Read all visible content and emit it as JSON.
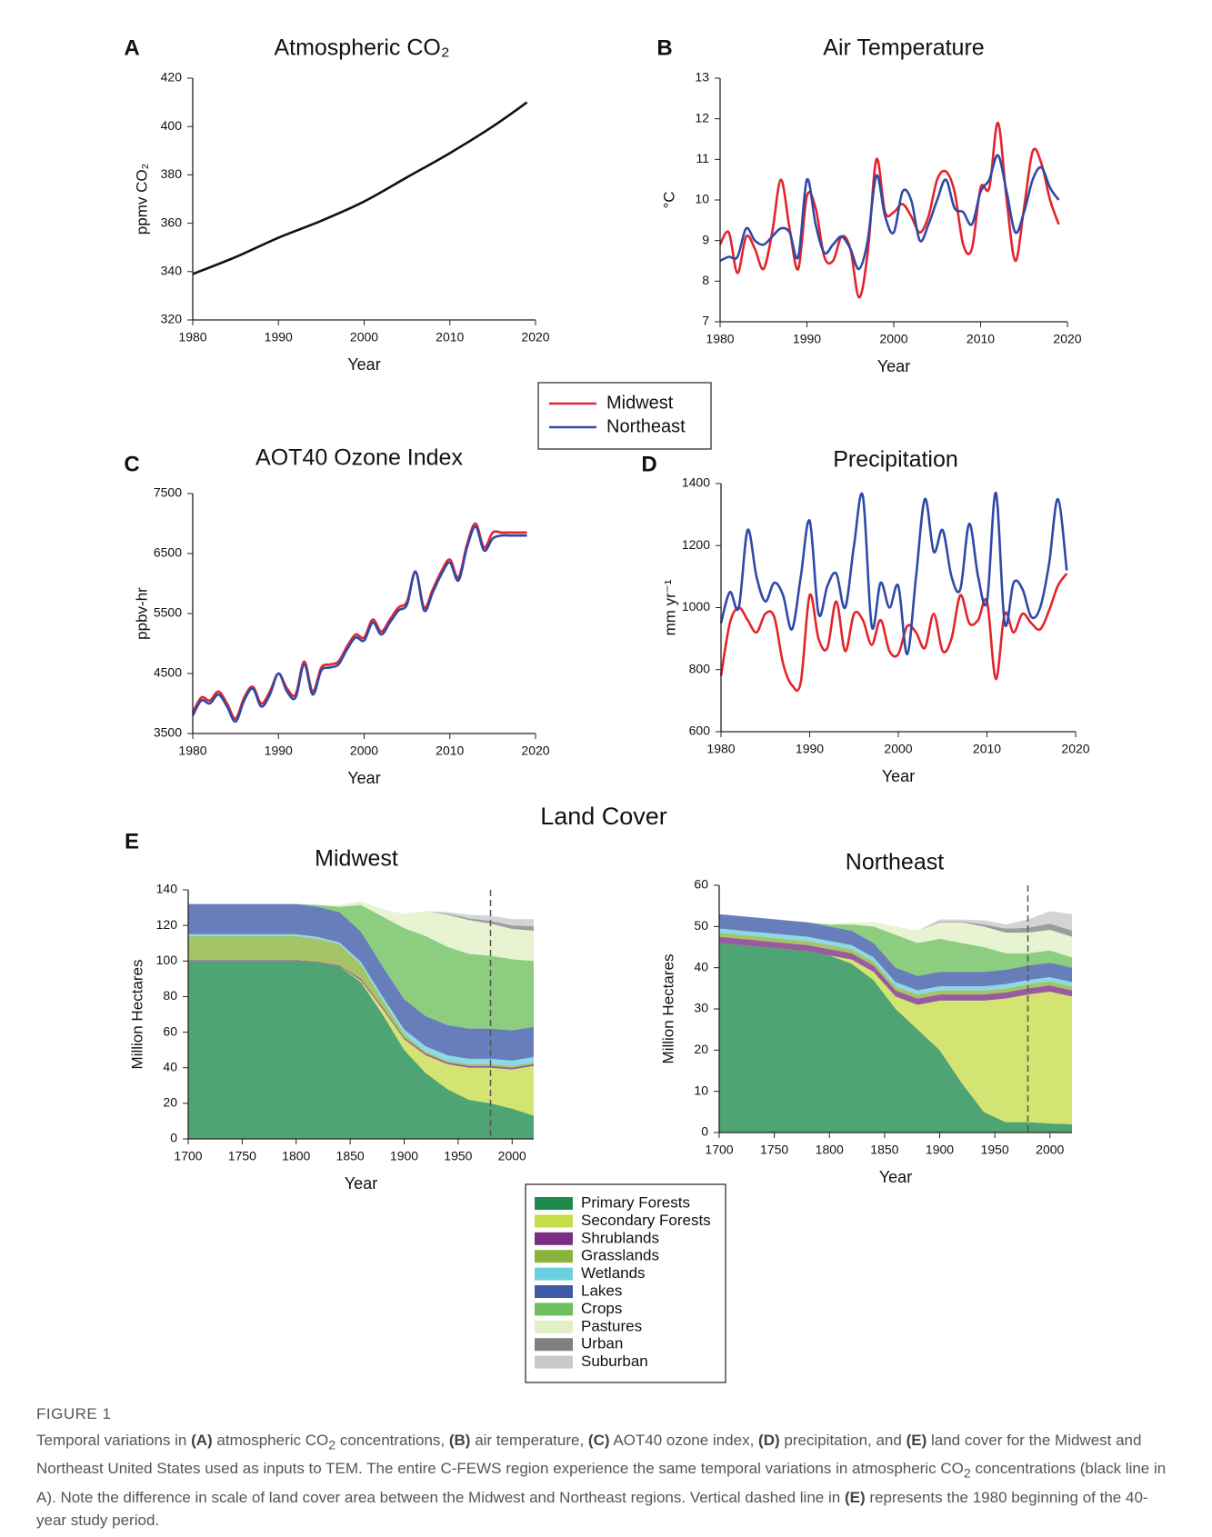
{
  "chart_data": [
    {
      "type": "line",
      "panel": "A",
      "title": "Atmospheric CO₂",
      "xlabel": "Year",
      "ylabel": "ppmv CO₂",
      "x": [
        1980,
        1985,
        1990,
        1995,
        2000,
        2005,
        2010,
        2015,
        2019
      ],
      "series": [
        {
          "color": "#111111",
          "values": [
            339,
            346,
            354,
            361,
            369,
            379,
            389,
            400,
            410
          ]
        }
      ],
      "xlim": [
        1980,
        2020
      ],
      "xticks": [
        1980,
        1990,
        2000,
        2010,
        2020
      ],
      "ylim": [
        320,
        420
      ],
      "yticks": [
        320,
        340,
        360,
        380,
        400,
        420
      ]
    },
    {
      "type": "line",
      "panel": "B",
      "title": "Air Temperature",
      "xlabel": "Year",
      "ylabel": "°C",
      "x": [
        1980,
        1981,
        1982,
        1983,
        1984,
        1985,
        1986,
        1987,
        1988,
        1989,
        1990,
        1991,
        1992,
        1993,
        1994,
        1995,
        1996,
        1997,
        1998,
        1999,
        2000,
        2001,
        2002,
        2003,
        2004,
        2005,
        2006,
        2007,
        2008,
        2009,
        2010,
        2011,
        2012,
        2013,
        2014,
        2015,
        2016,
        2017,
        2018,
        2019
      ],
      "series": [
        {
          "name": "Midwest",
          "color": "#e3242b",
          "values": [
            8.9,
            9.2,
            8.2,
            9.1,
            8.8,
            8.3,
            9.2,
            10.5,
            9.3,
            8.3,
            10.1,
            9.8,
            8.6,
            8.5,
            9.1,
            8.8,
            7.6,
            8.7,
            11.0,
            9.7,
            9.7,
            9.9,
            9.6,
            9.2,
            9.6,
            10.5,
            10.7,
            10.2,
            8.9,
            8.8,
            10.3,
            10.3,
            11.9,
            10.0,
            8.5,
            9.8,
            11.2,
            10.9,
            10.0,
            9.4
          ]
        },
        {
          "name": "Northeast",
          "color": "#2e4aa8",
          "values": [
            8.5,
            8.6,
            8.6,
            9.3,
            9.0,
            8.9,
            9.1,
            9.3,
            9.2,
            8.6,
            10.5,
            9.4,
            8.7,
            8.9,
            9.1,
            8.8,
            8.3,
            9.0,
            10.6,
            9.6,
            9.2,
            10.2,
            10.0,
            9.0,
            9.4,
            10.0,
            10.5,
            9.8,
            9.7,
            9.4,
            10.2,
            10.5,
            11.1,
            10.2,
            9.2,
            9.7,
            10.5,
            10.8,
            10.3,
            10.0
          ]
        }
      ],
      "xlim": [
        1980,
        2020
      ],
      "xticks": [
        1980,
        1990,
        2000,
        2010,
        2020
      ],
      "ylim": [
        7,
        13
      ],
      "yticks": [
        7,
        8,
        9,
        10,
        11,
        12,
        13
      ]
    },
    {
      "type": "line",
      "panel": "C",
      "title": "AOT40 Ozone Index",
      "xlabel": "Year",
      "ylabel": "ppbv-hr",
      "x": [
        1980,
        1981,
        1982,
        1983,
        1984,
        1985,
        1986,
        1987,
        1988,
        1989,
        1990,
        1991,
        1992,
        1993,
        1994,
        1995,
        1996,
        1997,
        1998,
        1999,
        2000,
        2001,
        2002,
        2003,
        2004,
        2005,
        2006,
        2007,
        2008,
        2009,
        2010,
        2011,
        2012,
        2013,
        2014,
        2015,
        2016,
        2017,
        2018,
        2019
      ],
      "series": [
        {
          "color": "#e3242b",
          "values": [
            3850,
            4100,
            4050,
            4200,
            4000,
            3750,
            4100,
            4280,
            4000,
            4200,
            4500,
            4250,
            4150,
            4700,
            4200,
            4600,
            4650,
            4700,
            4950,
            5150,
            5100,
            5400,
            5200,
            5400,
            5600,
            5700,
            6200,
            5600,
            5900,
            6200,
            6400,
            6100,
            6650,
            7000,
            6600,
            6850,
            6850,
            6850,
            6850,
            6850
          ]
        },
        {
          "color": "#2e4aa8",
          "values": [
            3800,
            4050,
            4000,
            4150,
            3950,
            3700,
            4050,
            4250,
            3950,
            4150,
            4500,
            4200,
            4100,
            4650,
            4150,
            4550,
            4600,
            4650,
            4900,
            5100,
            5050,
            5350,
            5150,
            5350,
            5550,
            5650,
            6200,
            5550,
            5850,
            6150,
            6350,
            6050,
            6600,
            6950,
            6550,
            6750,
            6800,
            6800,
            6800,
            6800
          ]
        }
      ],
      "xlim": [
        1980,
        2020
      ],
      "xticks": [
        1980,
        1990,
        2000,
        2010,
        2020
      ],
      "ylim": [
        3500,
        7500
      ],
      "yticks": [
        3500,
        4500,
        5500,
        6500,
        7500
      ]
    },
    {
      "type": "line",
      "panel": "D",
      "title": "Precipitation",
      "xlabel": "Year",
      "ylabel": "mm yr⁻¹",
      "x": [
        1980,
        1981,
        1982,
        1983,
        1984,
        1985,
        1986,
        1987,
        1988,
        1989,
        1990,
        1991,
        1992,
        1993,
        1994,
        1995,
        1996,
        1997,
        1998,
        1999,
        2000,
        2001,
        2002,
        2003,
        2004,
        2005,
        2006,
        2007,
        2008,
        2009,
        2010,
        2011,
        2012,
        2013,
        2014,
        2015,
        2016,
        2017,
        2018,
        2019
      ],
      "series": [
        {
          "color": "#e3242b",
          "values": [
            780,
            950,
            1000,
            960,
            920,
            980,
            970,
            820,
            750,
            760,
            1040,
            900,
            870,
            1020,
            860,
            980,
            960,
            880,
            960,
            860,
            850,
            940,
            920,
            870,
            980,
            860,
            900,
            1040,
            950,
            960,
            1020,
            770,
            980,
            920,
            980,
            950,
            930,
            990,
            1070,
            1110
          ]
        },
        {
          "color": "#2e4aa8",
          "values": [
            950,
            1050,
            1000,
            1250,
            1100,
            1020,
            1080,
            1040,
            930,
            1100,
            1280,
            980,
            1070,
            1110,
            1000,
            1200,
            1360,
            940,
            1080,
            1000,
            1070,
            850,
            1100,
            1350,
            1180,
            1250,
            1100,
            1060,
            1270,
            1100,
            1020,
            1370,
            950,
            1080,
            1060,
            970,
            1000,
            1140,
            1350,
            1120
          ]
        }
      ],
      "xlim": [
        1980,
        2020
      ],
      "xticks": [
        1980,
        1990,
        2000,
        2010,
        2020
      ],
      "ylim": [
        600,
        1400
      ],
      "yticks": [
        600,
        800,
        1000,
        1200,
        1400
      ]
    },
    {
      "type": "stacked_area",
      "panel": "E",
      "suptitle": "Land Cover",
      "title": "Midwest",
      "xlabel": "Year",
      "ylabel": "Million Hectares",
      "x": [
        1700,
        1720,
        1740,
        1760,
        1780,
        1800,
        1820,
        1840,
        1860,
        1880,
        1900,
        1920,
        1940,
        1960,
        1980,
        2000,
        2020
      ],
      "series": [
        {
          "name": "Primary Forests",
          "color": "#1e8a4c",
          "values": [
            100,
            100,
            100,
            100,
            100,
            100,
            99,
            97,
            88,
            70,
            50,
            37,
            28,
            22,
            20,
            17,
            13
          ]
        },
        {
          "name": "Secondary Forests",
          "color": "#c6dc4a",
          "values": [
            0,
            0,
            0,
            0,
            0,
            0,
            0,
            0,
            1,
            3,
            6,
            10,
            14,
            18,
            20,
            22,
            28
          ]
        },
        {
          "name": "Shrublands",
          "color": "#7b2d82",
          "values": [
            0.5,
            0.5,
            0.5,
            0.5,
            0.5,
            0.5,
            0.5,
            0.5,
            1,
            1,
            1,
            1,
            1,
            1,
            1,
            1,
            1
          ]
        },
        {
          "name": "Grasslands",
          "color": "#8cb43c",
          "values": [
            13.5,
            13.5,
            13.5,
            13.5,
            13.5,
            13.5,
            13,
            12,
            8,
            4,
            2,
            1,
            1,
            1,
            1,
            1,
            1
          ]
        },
        {
          "name": "Wetlands",
          "color": "#6ccfe0",
          "values": [
            1,
            1,
            1,
            1,
            1,
            1,
            1,
            1,
            1.5,
            2,
            2.5,
            3,
            3,
            3,
            3,
            3,
            3
          ]
        },
        {
          "name": "Lakes",
          "color": "#3d5aa8",
          "values": [
            17,
            17,
            17,
            17,
            17,
            17,
            17,
            17,
            17,
            17,
            17,
            17,
            17,
            17,
            17,
            17,
            17
          ]
        },
        {
          "name": "Crops",
          "color": "#6cbf5c",
          "values": [
            0,
            0,
            0,
            0,
            0,
            0,
            1,
            3,
            15,
            28,
            40,
            45,
            44,
            42,
            41,
            40,
            37
          ]
        },
        {
          "name": "Pastures",
          "color": "#e0efc4",
          "values": [
            0,
            0,
            0,
            0,
            0,
            0,
            0,
            1,
            2,
            4,
            8,
            14,
            18,
            19,
            18,
            17,
            17
          ]
        },
        {
          "name": "Urban",
          "color": "#808080",
          "values": [
            0,
            0,
            0,
            0,
            0,
            0,
            0,
            0,
            0,
            0,
            0,
            0,
            0.5,
            1,
            1.5,
            2,
            2.5
          ]
        },
        {
          "name": "Suburban",
          "color": "#c8c8c8",
          "values": [
            0,
            0,
            0,
            0,
            0,
            0,
            0,
            0,
            0,
            0,
            0,
            0,
            1,
            2,
            3,
            3.5,
            4
          ]
        }
      ],
      "vline": 1980,
      "xlim": [
        1700,
        2020
      ],
      "xticks": [
        1700,
        1750,
        1800,
        1850,
        1900,
        1950,
        2000
      ],
      "ylim": [
        0,
        140
      ],
      "yticks": [
        0,
        20,
        40,
        60,
        80,
        100,
        120,
        140
      ]
    },
    {
      "type": "stacked_area",
      "title": "Northeast",
      "xlabel": "Year",
      "ylabel": "Million Hectares",
      "x": [
        1700,
        1720,
        1740,
        1760,
        1780,
        1800,
        1820,
        1840,
        1860,
        1880,
        1900,
        1920,
        1940,
        1960,
        1980,
        2000,
        2020
      ],
      "series": [
        {
          "color": "#1e8a4c",
          "values": [
            46,
            45.5,
            45,
            44.5,
            44,
            43,
            41,
            37,
            30,
            25,
            20,
            12,
            5,
            2.5,
            2.5,
            2.2,
            2
          ]
        },
        {
          "color": "#c6dc4a",
          "values": [
            0,
            0,
            0,
            0,
            0,
            0,
            1,
            2,
            3,
            6,
            12,
            20,
            27,
            30,
            31,
            32,
            31
          ]
        },
        {
          "color": "#7b2d82",
          "values": [
            1.5,
            1.5,
            1.5,
            1.5,
            1.5,
            1.5,
            1.5,
            1.5,
            1.5,
            1.5,
            1.5,
            1.5,
            1.5,
            1.5,
            1.5,
            1.5,
            1.5
          ]
        },
        {
          "color": "#8cb43c",
          "values": [
            1,
            1,
            1,
            1,
            1,
            1,
            1,
            1,
            1,
            1,
            1,
            1,
            1,
            1,
            1,
            1,
            1
          ]
        },
        {
          "color": "#6ccfe0",
          "values": [
            1,
            1,
            1,
            1,
            1,
            1,
            1,
            1,
            1,
            1,
            1,
            1,
            1,
            1,
            1,
            1,
            1
          ]
        },
        {
          "color": "#3d5aa8",
          "values": [
            3.5,
            3.5,
            3.5,
            3.5,
            3.5,
            3.5,
            3.5,
            3.5,
            3.5,
            3.5,
            3.5,
            3.5,
            3.5,
            3.5,
            3.5,
            3.5,
            3.5
          ]
        },
        {
          "color": "#6cbf5c",
          "values": [
            0,
            0,
            0,
            0,
            0,
            0.5,
            1.5,
            4,
            8,
            8,
            8,
            7,
            6,
            4,
            3,
            3,
            2.5
          ]
        },
        {
          "color": "#e0efc4",
          "values": [
            0,
            0,
            0,
            0,
            0,
            0,
            0.5,
            1,
            2,
            3,
            4,
            5,
            5,
            5,
            5,
            5,
            5
          ]
        },
        {
          "color": "#808080",
          "values": [
            0,
            0,
            0,
            0,
            0,
            0,
            0,
            0,
            0,
            0,
            0.2,
            0.2,
            0.5,
            1,
            1.2,
            1.5,
            1.5
          ]
        },
        {
          "color": "#c8c8c8",
          "values": [
            0,
            0,
            0,
            0,
            0,
            0,
            0,
            0,
            0,
            0,
            0.5,
            0.5,
            1,
            1,
            2,
            3,
            4
          ]
        }
      ],
      "vline": 1980,
      "xlim": [
        1700,
        2020
      ],
      "xticks": [
        1700,
        1750,
        1800,
        1850,
        1900,
        1950,
        2000
      ],
      "ylim": [
        0,
        60
      ],
      "yticks": [
        0,
        10,
        20,
        30,
        40,
        50,
        60
      ]
    }
  ],
  "figure": {
    "label": "FIGURE 1",
    "caption": [
      "Temporal variations in ",
      "(A)",
      " atmospheric CO",
      "2",
      " concentrations, ",
      "(B)",
      " air temperature, ",
      "(C)",
      " AOT40 ozone index, ",
      "(D)",
      " precipitation, and ",
      "(E)",
      " land cover for the Midwest and Northeast United States used as inputs to TEM. The entire C-FEWS region experience the same temporal variations in atmospheric CO",
      "2",
      " concentrations (black line in A). Note the difference in scale of land cover area between the Midwest and Northeast regions. Vertical dashed line in ",
      "(E)",
      " represents the 1980 beginning of the 40-year study period."
    ]
  }
}
